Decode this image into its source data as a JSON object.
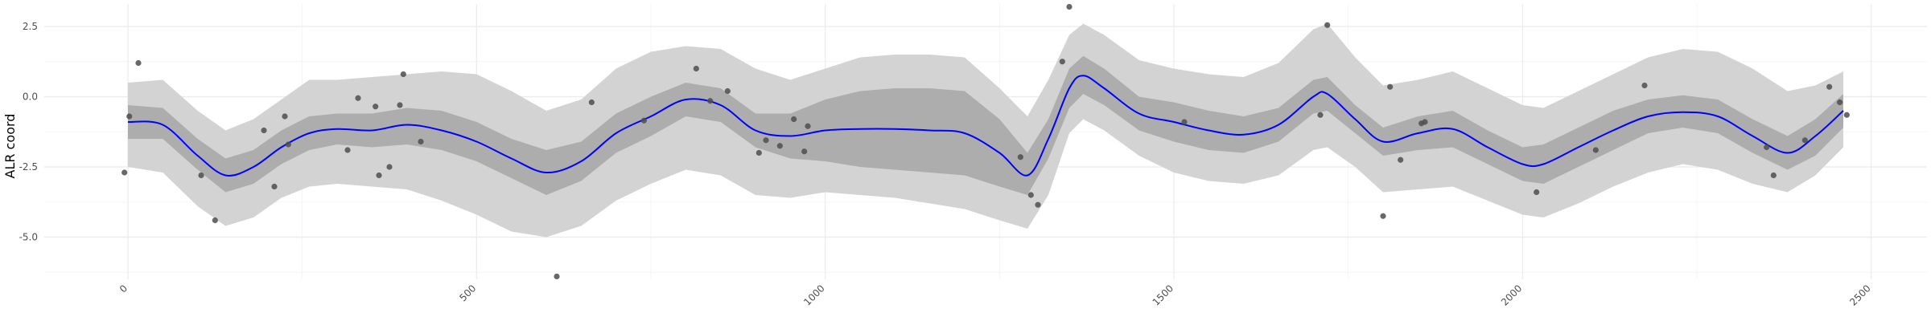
{
  "chart_data": {
    "type": "scatter",
    "ylabel": "ALR coord",
    "xlabel": "",
    "xlim": [
      -120,
      2580
    ],
    "ylim": [
      -6.5,
      3.3
    ],
    "x_ticks": [
      0,
      500,
      1000,
      1500,
      2000,
      2500
    ],
    "x_tick_labels": [
      "0",
      "500",
      "1000",
      "1500",
      "2000",
      "2500"
    ],
    "y_ticks": [
      -5.0,
      -2.5,
      0.0,
      2.5
    ],
    "y_tick_labels": [
      "-5.0",
      "-2.5",
      "0.0",
      "2.5"
    ],
    "grid": true,
    "colors": {
      "outer_band": "#d3d3d3",
      "inner_band": "#adadad",
      "line": "#0000ff",
      "points": "#4d4d4d",
      "grid_major": "#ebebeb",
      "grid_minor": "#f5f5f5"
    },
    "points": [
      {
        "x": -5,
        "y": -2.7
      },
      {
        "x": 2,
        "y": -0.7
      },
      {
        "x": 15,
        "y": 1.2
      },
      {
        "x": 105,
        "y": -2.8
      },
      {
        "x": 125,
        "y": -4.4
      },
      {
        "x": 195,
        "y": -1.2
      },
      {
        "x": 210,
        "y": -3.2
      },
      {
        "x": 225,
        "y": -0.7
      },
      {
        "x": 230,
        "y": -1.7
      },
      {
        "x": 315,
        "y": -1.9
      },
      {
        "x": 330,
        "y": -0.05
      },
      {
        "x": 355,
        "y": -0.35
      },
      {
        "x": 360,
        "y": -2.8
      },
      {
        "x": 375,
        "y": -2.5
      },
      {
        "x": 390,
        "y": -0.3
      },
      {
        "x": 395,
        "y": 0.8
      },
      {
        "x": 420,
        "y": -1.6
      },
      {
        "x": 615,
        "y": -6.4
      },
      {
        "x": 665,
        "y": -0.2
      },
      {
        "x": 740,
        "y": -0.85
      },
      {
        "x": 815,
        "y": 1.0
      },
      {
        "x": 835,
        "y": -0.15
      },
      {
        "x": 860,
        "y": 0.2
      },
      {
        "x": 905,
        "y": -2.0
      },
      {
        "x": 915,
        "y": -1.55
      },
      {
        "x": 935,
        "y": -1.75
      },
      {
        "x": 955,
        "y": -0.8
      },
      {
        "x": 970,
        "y": -1.95
      },
      {
        "x": 975,
        "y": -1.05
      },
      {
        "x": 1280,
        "y": -2.15
      },
      {
        "x": 1295,
        "y": -3.5
      },
      {
        "x": 1305,
        "y": -3.85
      },
      {
        "x": 1340,
        "y": 1.25
      },
      {
        "x": 1350,
        "y": 3.2
      },
      {
        "x": 1515,
        "y": -0.9
      },
      {
        "x": 1710,
        "y": -0.65
      },
      {
        "x": 1720,
        "y": 2.55
      },
      {
        "x": 1800,
        "y": -4.25
      },
      {
        "x": 1810,
        "y": 0.35
      },
      {
        "x": 1825,
        "y": -2.25
      },
      {
        "x": 1855,
        "y": -0.95
      },
      {
        "x": 1860,
        "y": -0.9
      },
      {
        "x": 2020,
        "y": -3.4
      },
      {
        "x": 2105,
        "y": -1.9
      },
      {
        "x": 2175,
        "y": 0.4
      },
      {
        "x": 2350,
        "y": -1.8
      },
      {
        "x": 2360,
        "y": -2.8
      },
      {
        "x": 2405,
        "y": -1.55
      },
      {
        "x": 2440,
        "y": 0.35
      },
      {
        "x": 2455,
        "y": -0.2
      },
      {
        "x": 2465,
        "y": -0.65
      }
    ],
    "smooth": {
      "x": [
        0,
        50,
        100,
        140,
        180,
        220,
        260,
        300,
        350,
        400,
        450,
        500,
        550,
        600,
        650,
        700,
        750,
        800,
        850,
        900,
        950,
        1000,
        1050,
        1100,
        1150,
        1200,
        1250,
        1290,
        1320,
        1350,
        1370,
        1400,
        1450,
        1500,
        1550,
        1600,
        1650,
        1700,
        1720,
        1760,
        1800,
        1850,
        1900,
        1950,
        2000,
        2030,
        2080,
        2130,
        2180,
        2230,
        2280,
        2330,
        2380,
        2420,
        2460
      ],
      "fit": [
        -0.9,
        -1.0,
        -2.1,
        -2.8,
        -2.5,
        -1.8,
        -1.3,
        -1.15,
        -1.2,
        -1.0,
        -1.2,
        -1.6,
        -2.2,
        -2.7,
        -2.3,
        -1.3,
        -0.7,
        -0.1,
        -0.3,
        -1.2,
        -1.4,
        -1.2,
        -1.15,
        -1.15,
        -1.2,
        -1.3,
        -2.0,
        -2.8,
        -1.5,
        0.3,
        0.75,
        0.3,
        -0.6,
        -0.9,
        -1.2,
        -1.35,
        -1.0,
        0.0,
        0.1,
        -0.8,
        -1.6,
        -1.3,
        -1.15,
        -1.8,
        -2.4,
        -2.4,
        -1.8,
        -1.2,
        -0.7,
        -0.55,
        -0.7,
        -1.4,
        -2.0,
        -1.4,
        -0.5
      ],
      "inner_lo": [
        -1.5,
        -1.5,
        -2.6,
        -3.4,
        -3.1,
        -2.4,
        -1.9,
        -1.7,
        -1.8,
        -1.7,
        -1.9,
        -2.3,
        -2.9,
        -3.5,
        -3.0,
        -2.0,
        -1.4,
        -0.7,
        -0.9,
        -1.8,
        -2.2,
        -2.3,
        -2.5,
        -2.6,
        -2.7,
        -2.8,
        -3.2,
        -3.5,
        -2.2,
        -0.4,
        0.1,
        -0.3,
        -1.2,
        -1.6,
        -1.9,
        -2.0,
        -1.6,
        -0.6,
        -0.5,
        -1.3,
        -2.1,
        -1.9,
        -1.8,
        -2.4,
        -3.0,
        -3.1,
        -2.5,
        -1.9,
        -1.3,
        -1.1,
        -1.3,
        -2.0,
        -2.6,
        -2.1,
        -1.1
      ],
      "inner_hi": [
        -0.3,
        -0.4,
        -1.5,
        -2.2,
        -1.9,
        -1.2,
        -0.7,
        -0.6,
        -0.6,
        -0.4,
        -0.5,
        -0.9,
        -1.5,
        -1.9,
        -1.6,
        -0.6,
        0.0,
        0.5,
        0.3,
        -0.6,
        -0.6,
        -0.1,
        0.2,
        0.3,
        0.3,
        0.2,
        -0.8,
        -2.0,
        -0.8,
        1.0,
        1.45,
        1.0,
        0.0,
        -0.2,
        -0.5,
        -0.7,
        -0.4,
        0.6,
        0.7,
        -0.3,
        -1.1,
        -0.7,
        -0.5,
        -1.2,
        -1.8,
        -1.7,
        -1.1,
        -0.5,
        -0.1,
        0.05,
        -0.1,
        -0.8,
        -1.4,
        -0.8,
        0.1
      ],
      "outer_lo": [
        -2.5,
        -2.7,
        -3.9,
        -4.6,
        -4.3,
        -3.6,
        -3.2,
        -3.1,
        -3.2,
        -3.3,
        -3.7,
        -4.2,
        -4.8,
        -5.0,
        -4.6,
        -3.7,
        -3.1,
        -2.6,
        -2.8,
        -3.5,
        -3.6,
        -3.4,
        -3.5,
        -3.6,
        -3.8,
        -4.0,
        -4.4,
        -4.7,
        -3.5,
        -1.3,
        -0.8,
        -1.2,
        -2.1,
        -2.7,
        -3.0,
        -3.1,
        -2.8,
        -1.9,
        -1.8,
        -2.5,
        -3.4,
        -3.3,
        -3.2,
        -3.7,
        -4.2,
        -4.3,
        -3.8,
        -3.2,
        -2.7,
        -2.4,
        -2.6,
        -3.1,
        -3.4,
        -2.8,
        -1.8
      ],
      "outer_hi": [
        0.5,
        0.6,
        -0.5,
        -1.2,
        -0.8,
        -0.1,
        0.6,
        0.6,
        0.7,
        0.8,
        0.9,
        0.8,
        0.2,
        -0.5,
        -0.1,
        1.0,
        1.6,
        1.8,
        1.7,
        1.0,
        0.6,
        1.0,
        1.4,
        1.5,
        1.5,
        1.4,
        0.3,
        -0.7,
        0.6,
        2.2,
        2.6,
        2.2,
        1.3,
        1.0,
        0.8,
        0.7,
        1.2,
        2.4,
        2.6,
        1.4,
        0.4,
        0.6,
        0.9,
        0.3,
        -0.3,
        -0.4,
        0.2,
        0.8,
        1.4,
        1.7,
        1.6,
        1.0,
        0.2,
        0.4,
        0.9
      ]
    }
  }
}
